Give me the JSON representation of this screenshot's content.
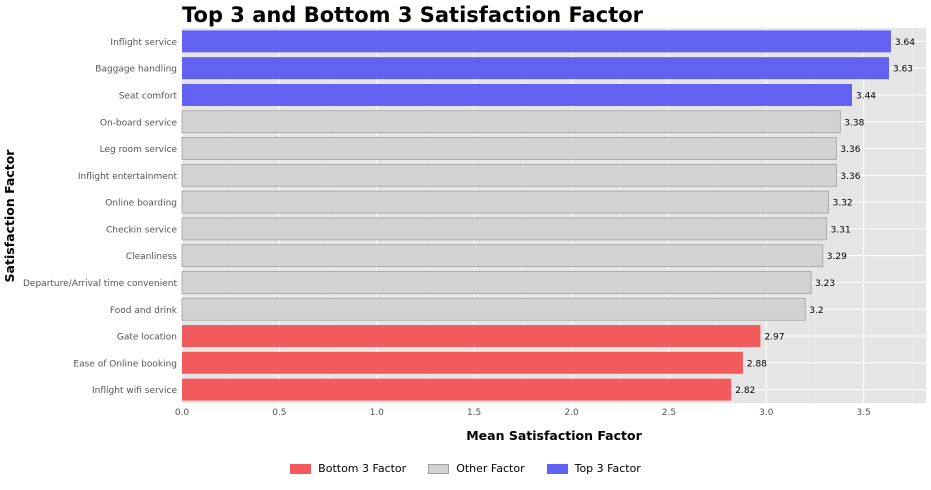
{
  "chart_data": {
    "type": "bar",
    "orientation": "horizontal",
    "title": "Top 3 and Bottom 3 Satisfaction Factor",
    "xlabel": "Mean Satisfaction Factor",
    "ylabel": "Satisfaction Factor",
    "xlim": [
      0,
      3.82
    ],
    "xticks": [
      "0.0",
      "0.5",
      "1.0",
      "1.5",
      "2.0",
      "2.5",
      "3.0",
      "3.5"
    ],
    "grid": true,
    "legend_position": "bottom-center",
    "categories": [
      "Inflight service",
      "Baggage handling",
      "Seat comfort",
      "On-board service",
      "Leg room service",
      "Inflight entertainment",
      "Online boarding",
      "Checkin service",
      "Cleanliness",
      "Departure/Arrival time convenient",
      "Food and drink",
      "Gate location",
      "Ease of Online booking",
      "Inflight wifi service"
    ],
    "values": [
      3.64,
      3.63,
      3.44,
      3.38,
      3.36,
      3.36,
      3.32,
      3.31,
      3.29,
      3.23,
      3.2,
      2.97,
      2.88,
      2.82
    ],
    "value_labels": [
      "3.64",
      "3.63",
      "3.44",
      "3.38",
      "3.36",
      "3.36",
      "3.32",
      "3.31",
      "3.29",
      "3.23",
      "3.2",
      "2.97",
      "2.88",
      "2.82"
    ],
    "groups": [
      "top",
      "top",
      "top",
      "other",
      "other",
      "other",
      "other",
      "other",
      "other",
      "other",
      "other",
      "bottom",
      "bottom",
      "bottom"
    ],
    "legend": [
      {
        "key": "bottom",
        "label": "Bottom 3 Factor",
        "color": "#f25a5c"
      },
      {
        "key": "other",
        "label": "Other Factor",
        "color": "#d2d2d2"
      },
      {
        "key": "top",
        "label": "Top 3 Factor",
        "color": "#6161f2"
      }
    ],
    "colors": {
      "plot_background": "#e5e5e5",
      "grid": "#ffffff",
      "other_border": "#a0a0a0"
    }
  }
}
